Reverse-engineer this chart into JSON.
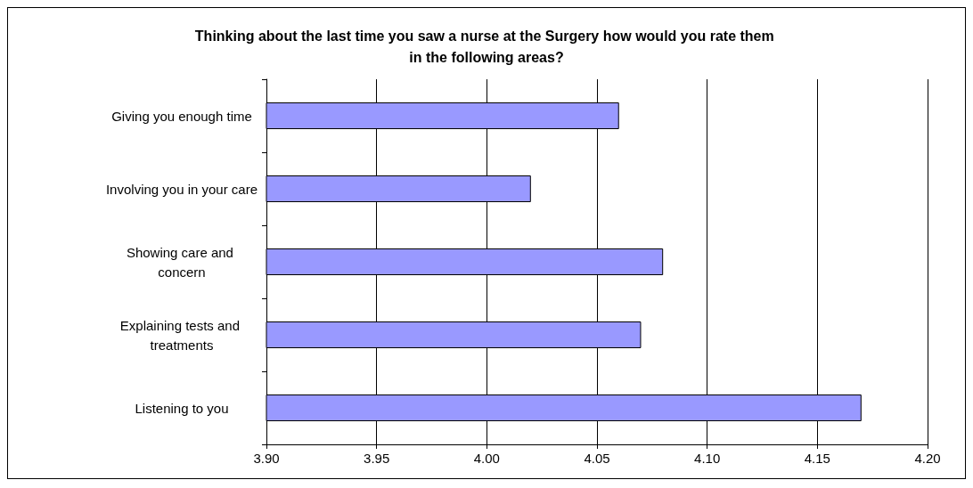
{
  "chart_data": {
    "type": "bar",
    "orientation": "horizontal",
    "title": "Thinking about the last time you saw a nurse at the Surgery how would you rate them in the following areas?",
    "categories": [
      "Giving you enough time",
      "Involving you in your care",
      "Showing care and concern",
      "Explaining tests and treatments",
      "Listening to you"
    ],
    "values": [
      4.06,
      4.02,
      4.08,
      4.07,
      4.17
    ],
    "color": "#9999ff",
    "xlim": [
      3.9,
      4.2
    ],
    "xticks": [
      {
        "value": 3.9,
        "label": "3.90"
      },
      {
        "value": 3.95,
        "label": "3.95"
      },
      {
        "value": 4.0,
        "label": "4.00"
      },
      {
        "value": 4.05,
        "label": "4.05"
      },
      {
        "value": 4.1,
        "label": "4.10"
      },
      {
        "value": 4.15,
        "label": "4.15"
      },
      {
        "value": 4.2,
        "label": "4.20"
      }
    ],
    "grid": "x"
  }
}
